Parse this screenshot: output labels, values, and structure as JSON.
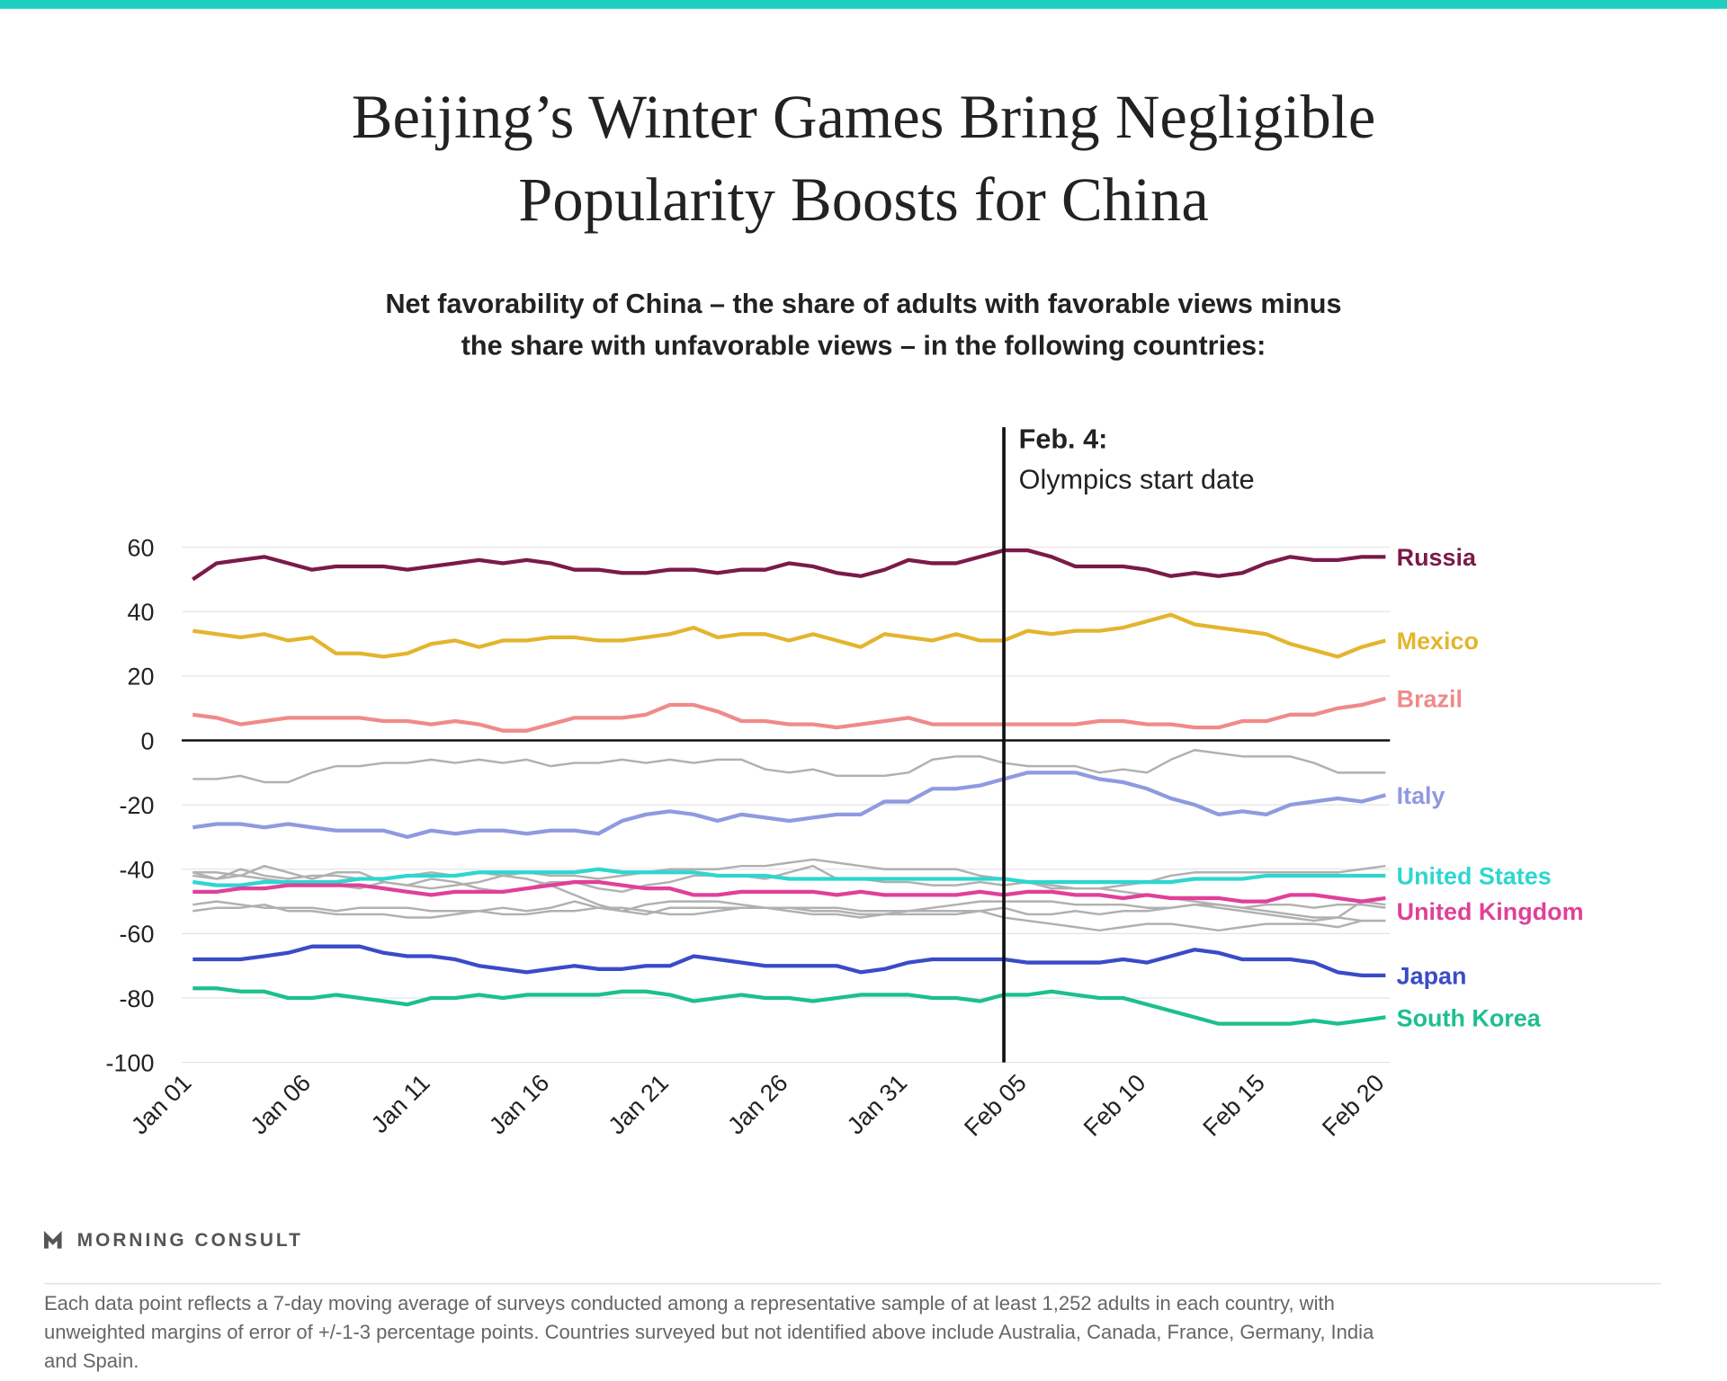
{
  "chart_data": {
    "type": "line",
    "title": [
      "Beijing’s Winter Games Bring Negligible",
      "Popularity Boosts for China"
    ],
    "subtitle": [
      "Net favorability of China – the share of adults with favorable views minus",
      "the share with unfavorable views – in the following countries:"
    ],
    "annotation": {
      "heading": "Feb. 4:",
      "text": "Olympics start date"
    },
    "brand": "MORNING CONSULT",
    "footnote": [
      "Each data point reflects a 7-day moving average of surveys conducted among a representative sample of at least 1,252 adults in each country, with",
      "unweighted margins of error of +/-1-3 percentage points. Countries surveyed but not identified above include Australia, Canada, France, Germany, India",
      "and Spain."
    ],
    "categories": [
      "Jan 01",
      null,
      null,
      null,
      null,
      "Jan 06",
      null,
      null,
      null,
      null,
      "Jan 11",
      null,
      null,
      null,
      null,
      "Jan 16",
      null,
      null,
      null,
      null,
      "Jan 21",
      null,
      null,
      null,
      null,
      "Jan 26",
      null,
      null,
      null,
      null,
      "Jan 31",
      null,
      null,
      null,
      null,
      "Feb 05",
      null,
      null,
      null,
      null,
      "Feb 10",
      null,
      null,
      null,
      null,
      "Feb 15",
      null,
      null,
      null,
      null,
      "Feb 20"
    ],
    "ylim": [
      -100,
      60
    ],
    "yticks": [
      -100,
      -80,
      -60,
      -40,
      -20,
      0,
      20,
      40,
      60
    ],
    "grid": true,
    "series": [
      {
        "color": "#b0b0b0",
        "values": [
          -12,
          -12,
          -11,
          -13,
          -13,
          -10,
          -8,
          -8,
          -7,
          -7,
          -6,
          -7,
          -6,
          -7,
          -6,
          -8,
          -7,
          -7,
          -6,
          -7,
          -6,
          -7,
          -6,
          -6,
          -9,
          -10,
          -9,
          -11,
          -11,
          -11,
          -10,
          -6,
          -5,
          -5,
          -7,
          -8,
          -8,
          -8,
          -10,
          -9,
          -10,
          -6,
          -3,
          -4,
          -5,
          -5,
          -5,
          -7,
          -10,
          -10,
          -10
        ]
      },
      {
        "color": "#b0b0b0",
        "values": [
          -41,
          -43,
          -40,
          -42,
          -43,
          -42,
          -42,
          -43,
          -43,
          -42,
          -41,
          -42,
          -41,
          -42,
          -41,
          -42,
          -42,
          -43,
          -42,
          -41,
          -40,
          -40,
          -40,
          -39,
          -39,
          -38,
          -37,
          -38,
          -39,
          -40,
          -40,
          -40,
          -40,
          -42,
          -43,
          -44,
          -45,
          -46,
          -46,
          -45,
          -44,
          -42,
          -41,
          -41,
          -41,
          -41,
          -41,
          -41,
          -41,
          -40,
          -39
        ]
      },
      {
        "color": "#b0b0b0",
        "values": [
          -41,
          -41,
          -42,
          -39,
          -41,
          -43,
          -41,
          -41,
          -44,
          -45,
          -43,
          -44,
          -46,
          -47,
          -46,
          -44,
          -44,
          -46,
          -47,
          -45,
          -44,
          -42,
          -42,
          -42,
          -43,
          -41,
          -39,
          -43,
          -43,
          -44,
          -44,
          -45,
          -45,
          -44,
          -45,
          -44,
          -46,
          -46,
          -46,
          -47,
          -48,
          -49,
          -50,
          -51,
          -52,
          -53,
          -54,
          -55,
          -55,
          -50,
          -51
        ]
      },
      {
        "color": "#b0b0b0",
        "values": [
          -51,
          -50,
          -51,
          -52,
          -52,
          -52,
          -53,
          -52,
          -52,
          -52,
          -53,
          -53,
          -53,
          -52,
          -53,
          -52,
          -50,
          -52,
          -53,
          -51,
          -50,
          -50,
          -50,
          -51,
          -52,
          -52,
          -52,
          -52,
          -53,
          -53,
          -53,
          -52,
          -51,
          -50,
          -50,
          -50,
          -50,
          -51,
          -51,
          -51,
          -52,
          -52,
          -51,
          -51,
          -52,
          -51,
          -51,
          -52,
          -51,
          -51,
          -52
        ]
      },
      {
        "color": "#b0b0b0",
        "values": [
          -53,
          -52,
          -52,
          -51,
          -53,
          -53,
          -54,
          -54,
          -54,
          -55,
          -55,
          -54,
          -53,
          -54,
          -54,
          -53,
          -53,
          -52,
          -52,
          -53,
          -54,
          -54,
          -53,
          -52,
          -52,
          -52,
          -53,
          -53,
          -54,
          -54,
          -54,
          -54,
          -54,
          -53,
          -52,
          -54,
          -54,
          -53,
          -54,
          -53,
          -53,
          -52,
          -51,
          -52,
          -53,
          -54,
          -55,
          -56,
          -55,
          -56,
          -56
        ]
      },
      {
        "color": "#b0b0b0",
        "values": [
          -42,
          -43,
          -42,
          -43,
          -44,
          -45,
          -45,
          -46,
          -44,
          -45,
          -46,
          -45,
          -44,
          -42,
          -43,
          -45,
          -48,
          -51,
          -53,
          -54,
          -52,
          -52,
          -52,
          -52,
          -52,
          -53,
          -54,
          -54,
          -55,
          -54,
          -53,
          -53,
          -53,
          -53,
          -55,
          -56,
          -57,
          -58,
          -59,
          -58,
          -57,
          -57,
          -58,
          -59,
          -58,
          -57,
          -57,
          -57,
          -58,
          -56,
          -56
        ]
      },
      {
        "name": "Russia",
        "color": "#7b1a4a",
        "values": [
          50,
          55,
          56,
          57,
          55,
          53,
          54,
          54,
          54,
          53,
          54,
          55,
          56,
          55,
          56,
          55,
          53,
          53,
          52,
          52,
          53,
          53,
          52,
          53,
          53,
          55,
          54,
          52,
          51,
          53,
          56,
          55,
          55,
          57,
          59,
          59,
          57,
          54,
          54,
          54,
          53,
          51,
          52,
          51,
          52,
          55,
          57,
          56,
          56,
          57,
          57
        ]
      },
      {
        "name": "Mexico",
        "color": "#e3b52e",
        "values": [
          34,
          33,
          32,
          33,
          31,
          32,
          27,
          27,
          26,
          27,
          30,
          31,
          29,
          31,
          31,
          32,
          32,
          31,
          31,
          32,
          33,
          35,
          32,
          33,
          33,
          31,
          33,
          31,
          29,
          33,
          32,
          31,
          33,
          31,
          31,
          34,
          33,
          34,
          34,
          35,
          37,
          39,
          36,
          35,
          34,
          33,
          30,
          28,
          26,
          29,
          31
        ]
      },
      {
        "name": "Brazil",
        "color": "#f08a8a",
        "values": [
          8,
          7,
          5,
          6,
          7,
          7,
          7,
          7,
          6,
          6,
          5,
          6,
          5,
          3,
          3,
          5,
          7,
          7,
          7,
          8,
          11,
          11,
          9,
          6,
          6,
          5,
          5,
          4,
          5,
          6,
          7,
          5,
          5,
          5,
          5,
          5,
          5,
          5,
          6,
          6,
          5,
          5,
          4,
          4,
          6,
          6,
          8,
          8,
          10,
          11,
          13
        ]
      },
      {
        "name": "Italy",
        "color": "#8f9ae0",
        "values": [
          -27,
          -26,
          -26,
          -27,
          -26,
          -27,
          -28,
          -28,
          -28,
          -30,
          -28,
          -29,
          -28,
          -28,
          -29,
          -28,
          -28,
          -29,
          -25,
          -23,
          -22,
          -23,
          -25,
          -23,
          -24,
          -25,
          -24,
          -23,
          -23,
          -19,
          -19,
          -15,
          -15,
          -14,
          -12,
          -10,
          -10,
          -10,
          -12,
          -13,
          -15,
          -18,
          -20,
          -23,
          -22,
          -23,
          -20,
          -19,
          -18,
          -19,
          -17
        ]
      },
      {
        "name": "United States",
        "color": "#2fd6d0",
        "values": [
          -44,
          -45,
          -45,
          -44,
          -44,
          -44,
          -44,
          -43,
          -43,
          -42,
          -42,
          -42,
          -41,
          -41,
          -41,
          -41,
          -41,
          -40,
          -41,
          -41,
          -41,
          -41,
          -42,
          -42,
          -42,
          -43,
          -43,
          -43,
          -43,
          -43,
          -43,
          -43,
          -43,
          -43,
          -43,
          -44,
          -44,
          -44,
          -44,
          -44,
          -44,
          -44,
          -43,
          -43,
          -43,
          -42,
          -42,
          -42,
          -42,
          -42,
          -42
        ]
      },
      {
        "name": "United Kingdom",
        "color": "#e0409a",
        "values": [
          -47,
          -47,
          -46,
          -46,
          -45,
          -45,
          -45,
          -45,
          -46,
          -47,
          -48,
          -47,
          -47,
          -47,
          -46,
          -45,
          -44,
          -44,
          -45,
          -46,
          -46,
          -48,
          -48,
          -47,
          -47,
          -47,
          -47,
          -48,
          -47,
          -48,
          -48,
          -48,
          -48,
          -47,
          -48,
          -47,
          -47,
          -48,
          -48,
          -49,
          -48,
          -49,
          -49,
          -49,
          -50,
          -50,
          -48,
          -48,
          -49,
          -50,
          -49
        ]
      },
      {
        "name": "Japan",
        "color": "#3a4bc8",
        "values": [
          -68,
          -68,
          -68,
          -67,
          -66,
          -64,
          -64,
          -64,
          -66,
          -67,
          -67,
          -68,
          -70,
          -71,
          -72,
          -71,
          -70,
          -71,
          -71,
          -70,
          -70,
          -67,
          -68,
          -69,
          -70,
          -70,
          -70,
          -70,
          -72,
          -71,
          -69,
          -68,
          -68,
          -68,
          -68,
          -69,
          -69,
          -69,
          -69,
          -68,
          -69,
          -67,
          -65,
          -66,
          -68,
          -68,
          -68,
          -69,
          -72,
          -73,
          -73
        ]
      },
      {
        "name": "South Korea",
        "color": "#1dbf8f",
        "values": [
          -77,
          -77,
          -78,
          -78,
          -80,
          -80,
          -79,
          -80,
          -81,
          -82,
          -80,
          -80,
          -79,
          -80,
          -79,
          -79,
          -79,
          -79,
          -78,
          -78,
          -79,
          -81,
          -80,
          -79,
          -80,
          -80,
          -81,
          -80,
          -79,
          -79,
          -79,
          -80,
          -80,
          -81,
          -79,
          -79,
          -78,
          -79,
          -80,
          -80,
          -82,
          -84,
          -86,
          -88,
          -88,
          -88,
          -88,
          -87,
          -88,
          -87,
          -86
        ]
      }
    ]
  }
}
